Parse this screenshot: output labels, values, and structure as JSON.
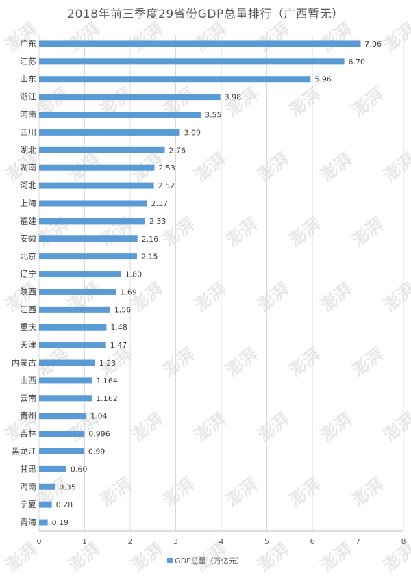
{
  "chart_data": {
    "type": "bar",
    "orientation": "horizontal",
    "title": "2018年前三季度29省份GDP总量排行（广西暂无）",
    "categories": [
      "广东",
      "江苏",
      "山东",
      "浙江",
      "河南",
      "四川",
      "湖北",
      "湖南",
      "河北",
      "上海",
      "福建",
      "安徽",
      "北京",
      "辽宁",
      "陕西",
      "江西",
      "重庆",
      "天津",
      "内蒙古",
      "山西",
      "云南",
      "贵州",
      "吉林",
      "黑龙江",
      "甘肃",
      "海南",
      "宁夏",
      "青海"
    ],
    "series": [
      {
        "name": "GDP总量（万亿元）",
        "values": [
          7.06,
          6.7,
          5.96,
          3.98,
          3.55,
          3.09,
          2.76,
          2.53,
          2.52,
          2.37,
          2.33,
          2.16,
          2.15,
          1.8,
          1.69,
          1.56,
          1.48,
          1.47,
          1.23,
          1.164,
          1.162,
          1.04,
          0.996,
          0.99,
          0.6,
          0.35,
          0.28,
          0.19
        ],
        "labels": [
          "7.06",
          "6.70",
          "5.96",
          "3.98",
          "3.55",
          "3.09",
          "2.76",
          "2.53",
          "2.52",
          "2.37",
          "2.33",
          "2.16",
          "2.15",
          "1.80",
          "1.69",
          "1.56",
          "1.48",
          "1.47",
          "1.23",
          "1.164",
          "1.162",
          "1.04",
          "0.996",
          "0.99",
          "0.60",
          "0.35",
          "0.28",
          "0.19"
        ]
      }
    ],
    "xlim": [
      0,
      8
    ],
    "x_ticks": [
      "0",
      "1",
      "2",
      "3",
      "4",
      "5",
      "6",
      "7",
      "8"
    ],
    "grid": true,
    "legend": "bottom",
    "colors": {
      "bar": "#5b9bd5",
      "grid": "#d9d9d9",
      "text": "#595959"
    }
  },
  "watermark": {
    "text": "澎湃"
  }
}
